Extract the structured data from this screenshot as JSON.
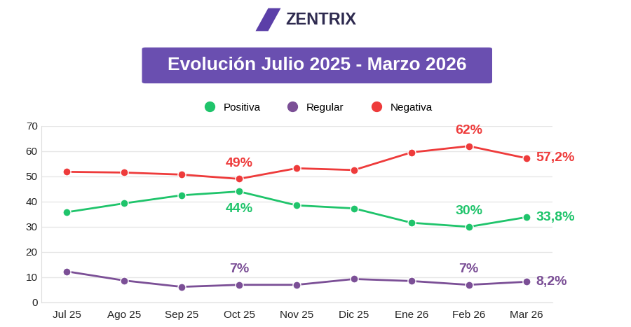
{
  "chart_data": {
    "type": "line",
    "brand": "ZENTRIX",
    "title": "Evolución Julio 2025 - Marzo 2026",
    "categories": [
      "Jul 25",
      "Ago 25",
      "Sep 25",
      "Oct 25",
      "Nov 25",
      "Dic 25",
      "Ene 26",
      "Feb 26",
      "Mar 26"
    ],
    "series": [
      {
        "name": "Positiva",
        "color": "#1fc46b",
        "marker": "circle",
        "values": [
          35.8,
          39.3,
          42.5,
          44,
          38.5,
          37.3,
          31.6,
          30,
          33.8
        ],
        "value_labels": [
          null,
          null,
          null,
          "44%",
          null,
          null,
          null,
          "30%",
          "33,8%"
        ]
      },
      {
        "name": "Regular",
        "color": "#7b4f96",
        "marker": "circle",
        "values": [
          12.3,
          8.7,
          6.2,
          7,
          7,
          9.3,
          8.5,
          7,
          8.2
        ],
        "value_labels": [
          null,
          null,
          null,
          "7%",
          null,
          null,
          null,
          "7%",
          "8,2%"
        ]
      },
      {
        "name": "Negativa",
        "color": "#ee3b3b",
        "marker": "circle",
        "values": [
          51.8,
          51.5,
          50.7,
          49,
          53.2,
          52.5,
          59.5,
          62,
          57.2
        ],
        "value_labels": [
          null,
          null,
          null,
          "49%",
          null,
          null,
          null,
          "62%",
          "57,2%"
        ]
      }
    ],
    "ylim": [
      0,
      70
    ],
    "yticks": [
      0,
      10,
      20,
      30,
      40,
      50,
      60,
      70
    ],
    "grid": true,
    "legend": "upper center",
    "data_labels": true
  }
}
